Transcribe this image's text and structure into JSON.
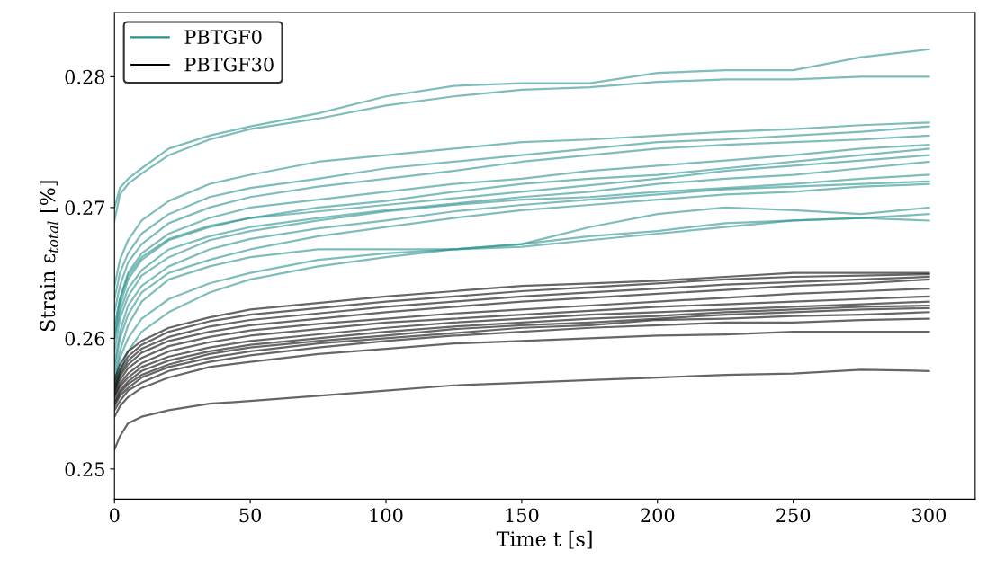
{
  "chart_data": {
    "type": "line",
    "xlabel": "Time t [s]",
    "ylabel": "Strain ε$_{total}$ [%]",
    "x": [
      0,
      2,
      5,
      10,
      20,
      35,
      50,
      75,
      100,
      125,
      150,
      175,
      200,
      225,
      250,
      275,
      300
    ],
    "xlim": [
      0,
      317
    ],
    "xticks": [
      0,
      50,
      100,
      150,
      200,
      250,
      300
    ],
    "ylim": [
      0.2477,
      0.2849
    ],
    "yticks": [
      0.25,
      0.26,
      0.27,
      0.28
    ],
    "grid": false,
    "legend": "top left",
    "marker": "none",
    "line_style": "solid",
    "series": [
      {
        "name": "PBTGF0",
        "color": "#2a918d",
        "values": [
          0.27,
          0.2715,
          0.2722,
          0.273,
          0.2745,
          0.2755,
          0.2762,
          0.2772,
          0.2785,
          0.2793,
          0.2795,
          0.2795,
          0.2803,
          0.2805,
          0.2805,
          0.2815,
          0.2821
        ]
      },
      {
        "color": "#2a918d",
        "values": [
          0.269,
          0.271,
          0.2718,
          0.2726,
          0.274,
          0.2752,
          0.276,
          0.2768,
          0.2778,
          0.2785,
          0.279,
          0.2792,
          0.2796,
          0.2798,
          0.2798,
          0.28,
          0.28
        ]
      },
      {
        "color": "#2a918d",
        "values": [
          0.264,
          0.266,
          0.2675,
          0.269,
          0.2705,
          0.2718,
          0.2725,
          0.2735,
          0.274,
          0.2745,
          0.275,
          0.2752,
          0.2755,
          0.2758,
          0.276,
          0.2763,
          0.2765
        ]
      },
      {
        "color": "#2a918d",
        "values": [
          0.263,
          0.265,
          0.2665,
          0.268,
          0.2695,
          0.2708,
          0.2715,
          0.2722,
          0.273,
          0.2735,
          0.274,
          0.2745,
          0.275,
          0.2752,
          0.2755,
          0.2758,
          0.2762
        ]
      },
      {
        "color": "#2a918d",
        "values": [
          0.262,
          0.264,
          0.2658,
          0.2672,
          0.2688,
          0.27,
          0.2708,
          0.2716,
          0.2722,
          0.2728,
          0.2735,
          0.274,
          0.2745,
          0.2748,
          0.275,
          0.2752,
          0.2755
        ]
      },
      {
        "color": "#2a918d",
        "values": [
          0.261,
          0.263,
          0.265,
          0.2665,
          0.268,
          0.2692,
          0.27,
          0.2706,
          0.2712,
          0.2718,
          0.2722,
          0.2728,
          0.2732,
          0.2736,
          0.274,
          0.2745,
          0.2748
        ]
      },
      {
        "color": "#2a918d",
        "values": [
          0.26,
          0.2625,
          0.2645,
          0.266,
          0.2675,
          0.2685,
          0.2692,
          0.27,
          0.2705,
          0.2712,
          0.2718,
          0.2722,
          0.2725,
          0.273,
          0.2735,
          0.274,
          0.2745
        ]
      },
      {
        "color": "#2a918d",
        "values": [
          0.2605,
          0.263,
          0.2648,
          0.2662,
          0.2676,
          0.2686,
          0.2692,
          0.2697,
          0.2702,
          0.2707,
          0.2712,
          0.2717,
          0.2722,
          0.2728,
          0.2732,
          0.2736,
          0.274
        ]
      },
      {
        "color": "#2a918d",
        "values": [
          0.26,
          0.262,
          0.2638,
          0.2652,
          0.2668,
          0.2678,
          0.2685,
          0.2692,
          0.2698,
          0.2703,
          0.2708,
          0.2712,
          0.2718,
          0.2722,
          0.2725,
          0.273,
          0.2735
        ]
      },
      {
        "color": "#2a918d",
        "values": [
          0.259,
          0.2615,
          0.2632,
          0.2648,
          0.2662,
          0.2675,
          0.2682,
          0.269,
          0.2697,
          0.2702,
          0.2706,
          0.2708,
          0.2712,
          0.2715,
          0.2718,
          0.2722,
          0.2725
        ]
      },
      {
        "color": "#2a918d",
        "values": [
          0.258,
          0.2605,
          0.2625,
          0.264,
          0.2655,
          0.2668,
          0.2676,
          0.2684,
          0.269,
          0.2697,
          0.2702,
          0.2706,
          0.271,
          0.2714,
          0.2716,
          0.2718,
          0.272
        ]
      },
      {
        "color": "#2a918d",
        "values": [
          0.2575,
          0.26,
          0.2618,
          0.2635,
          0.265,
          0.266,
          0.2668,
          0.2678,
          0.2685,
          0.2692,
          0.2698,
          0.2702,
          0.2706,
          0.271,
          0.2712,
          0.2716,
          0.2718
        ]
      },
      {
        "color": "#2a918d",
        "values": [
          0.257,
          0.259,
          0.261,
          0.2628,
          0.2645,
          0.2655,
          0.2662,
          0.2668,
          0.2668,
          0.2668,
          0.2672,
          0.2685,
          0.2695,
          0.27,
          0.2698,
          0.2695,
          0.27
        ]
      },
      {
        "color": "#2a918d",
        "values": [
          0.2565,
          0.2585,
          0.26,
          0.2615,
          0.263,
          0.2642,
          0.265,
          0.266,
          0.2665,
          0.2668,
          0.267,
          0.2675,
          0.268,
          0.2685,
          0.269,
          0.2692,
          0.2695
        ]
      },
      {
        "color": "#2a918d",
        "values": [
          0.256,
          0.2575,
          0.259,
          0.2605,
          0.262,
          0.2635,
          0.2645,
          0.2655,
          0.2662,
          0.2668,
          0.2672,
          0.2678,
          0.2682,
          0.2688,
          0.269,
          0.2692,
          0.269
        ]
      },
      {
        "name": "PBTGF30",
        "color": "#000000",
        "values": [
          0.2515,
          0.2525,
          0.2535,
          0.254,
          0.2545,
          0.255,
          0.2552,
          0.2556,
          0.256,
          0.2564,
          0.2566,
          0.2568,
          0.257,
          0.2572,
          0.2573,
          0.2576,
          0.2575
        ]
      },
      {
        "color": "#000000",
        "values": [
          0.254,
          0.2548,
          0.2555,
          0.2562,
          0.257,
          0.2578,
          0.2582,
          0.2588,
          0.2592,
          0.2596,
          0.2598,
          0.26,
          0.2602,
          0.2603,
          0.2605,
          0.2605,
          0.2605
        ]
      },
      {
        "color": "#000000",
        "values": [
          0.2545,
          0.2552,
          0.256,
          0.2566,
          0.2575,
          0.2582,
          0.2587,
          0.2593,
          0.2598,
          0.2602,
          0.2605,
          0.2608,
          0.261,
          0.2612,
          0.2612,
          0.2614,
          0.2615
        ]
      },
      {
        "color": "#000000",
        "values": [
          0.2548,
          0.2556,
          0.2562,
          0.257,
          0.2578,
          0.2585,
          0.259,
          0.2596,
          0.26,
          0.2604,
          0.2608,
          0.261,
          0.2614,
          0.2615,
          0.2617,
          0.2618,
          0.262
        ]
      },
      {
        "color": "#000000",
        "values": [
          0.255,
          0.2558,
          0.2565,
          0.2572,
          0.258,
          0.2588,
          0.2593,
          0.2598,
          0.2602,
          0.2607,
          0.261,
          0.2612,
          0.2615,
          0.2618,
          0.262,
          0.2622,
          0.2623
        ]
      },
      {
        "color": "#000000",
        "values": [
          0.2552,
          0.256,
          0.2567,
          0.2575,
          0.2583,
          0.259,
          0.2595,
          0.26,
          0.2605,
          0.2609,
          0.2612,
          0.2615,
          0.2617,
          0.262,
          0.2622,
          0.2624,
          0.2625
        ]
      },
      {
        "color": "#000000",
        "values": [
          0.2555,
          0.2563,
          0.257,
          0.2578,
          0.2586,
          0.2593,
          0.2598,
          0.2603,
          0.2608,
          0.2612,
          0.2615,
          0.2618,
          0.262,
          0.2622,
          0.2624,
          0.2626,
          0.2628
        ]
      },
      {
        "color": "#000000",
        "values": [
          0.2556,
          0.2565,
          0.2573,
          0.2581,
          0.259,
          0.2597,
          0.2602,
          0.2607,
          0.2612,
          0.2615,
          0.2618,
          0.2621,
          0.2624,
          0.2626,
          0.2628,
          0.263,
          0.2632
        ]
      },
      {
        "color": "#000000",
        "values": [
          0.2558,
          0.2568,
          0.2577,
          0.2585,
          0.2594,
          0.2601,
          0.2606,
          0.2611,
          0.2615,
          0.2619,
          0.2622,
          0.2625,
          0.2628,
          0.2631,
          0.2634,
          0.2636,
          0.2638
        ]
      },
      {
        "color": "#000000",
        "values": [
          0.256,
          0.2571,
          0.258,
          0.2589,
          0.2598,
          0.2605,
          0.261,
          0.2615,
          0.262,
          0.2624,
          0.2628,
          0.2631,
          0.2634,
          0.2637,
          0.264,
          0.2642,
          0.2645
        ]
      },
      {
        "color": "#000000",
        "values": [
          0.2562,
          0.2573,
          0.2583,
          0.2592,
          0.2601,
          0.2609,
          0.2614,
          0.2619,
          0.2624,
          0.2628,
          0.2632,
          0.2635,
          0.2638,
          0.2641,
          0.2643,
          0.2645,
          0.2647
        ]
      },
      {
        "color": "#000000",
        "values": [
          0.2565,
          0.2576,
          0.2586,
          0.2595,
          0.2605,
          0.2613,
          0.2618,
          0.2623,
          0.2628,
          0.2632,
          0.2636,
          0.2639,
          0.2642,
          0.2645,
          0.2647,
          0.2648,
          0.2649
        ]
      },
      {
        "color": "#000000",
        "values": [
          0.2568,
          0.258,
          0.259,
          0.2598,
          0.2608,
          0.2616,
          0.2622,
          0.2627,
          0.2632,
          0.2636,
          0.264,
          0.2642,
          0.2644,
          0.2647,
          0.265,
          0.265,
          0.265
        ]
      }
    ]
  }
}
